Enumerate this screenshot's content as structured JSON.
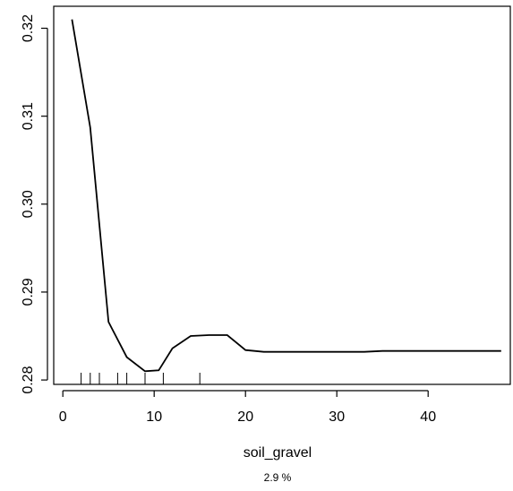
{
  "chart_data": {
    "type": "line",
    "title": "",
    "xlabel": "soil_gravel",
    "ylabel": "",
    "note": "2.9 %",
    "xlim": [
      -1,
      49
    ],
    "ylim": [
      0.2795,
      0.3225
    ],
    "x_ticks": [
      0,
      10,
      20,
      30,
      40
    ],
    "y_ticks": [
      0.28,
      0.29,
      0.3,
      0.31,
      0.32
    ],
    "y_tick_labels": [
      "0.28",
      "0.29",
      "0.30",
      "0.31",
      "0.32"
    ],
    "grid": false,
    "series": [
      {
        "x": [
          1,
          3,
          5,
          7,
          9,
          10.5,
          12,
          14,
          16,
          18,
          20,
          22,
          25,
          29,
          33,
          35,
          48
        ],
        "y": [
          0.321,
          0.3087,
          0.2866,
          0.2826,
          0.281,
          0.2811,
          0.2836,
          0.285,
          0.2851,
          0.2851,
          0.2834,
          0.2832,
          0.2832,
          0.2832,
          0.2832,
          0.2833,
          0.2833
        ]
      }
    ],
    "rug": [
      2,
      3,
      4,
      6,
      7,
      9,
      11,
      15
    ]
  }
}
